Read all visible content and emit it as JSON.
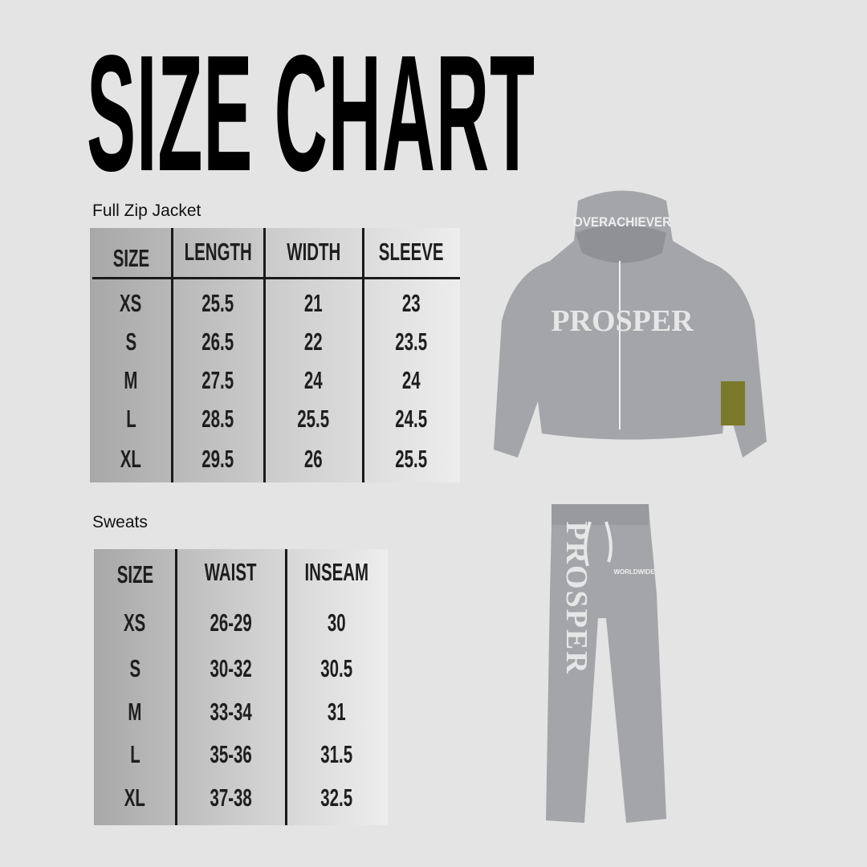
{
  "title": "SIZE CHART",
  "jacket": {
    "label": "Full Zip Jacket",
    "headers": [
      "SIZE",
      "LENGTH",
      "WIDTH",
      "SLEEVE"
    ],
    "rows": [
      [
        "XS",
        "25.5",
        "21",
        "23"
      ],
      [
        "S",
        "26.5",
        "22",
        "23.5"
      ],
      [
        "M",
        "27.5",
        "24",
        "24"
      ],
      [
        "L",
        "28.5",
        "25.5",
        "24.5"
      ],
      [
        "XL",
        "29.5",
        "26",
        "25.5"
      ]
    ]
  },
  "sweats": {
    "label": "Sweats",
    "headers": [
      "SIZE",
      "WAIST",
      "INSEAM"
    ],
    "rows": [
      [
        "XS",
        "26-29",
        "30"
      ],
      [
        "S",
        "30-32",
        "30.5"
      ],
      [
        "M",
        "33-34",
        "31"
      ],
      [
        "L",
        "35-36",
        "31.5"
      ],
      [
        "XL",
        "37-38",
        "32.5"
      ]
    ]
  },
  "products": {
    "hoodie": {
      "hood_text": "OVERACHIEVER",
      "chest_text": "PROSPER",
      "color": "#a3a5a8",
      "patch_color": "#7a7a2a"
    },
    "pants": {
      "leg_text": "PROSPER",
      "small_text": "WORLDWIDE",
      "color": "#a3a5a8"
    }
  },
  "colors": {
    "background": "#e4e4e4",
    "table_dark": "#a9a9a9",
    "table_light": "#ececec",
    "text": "#1e1e1e"
  }
}
